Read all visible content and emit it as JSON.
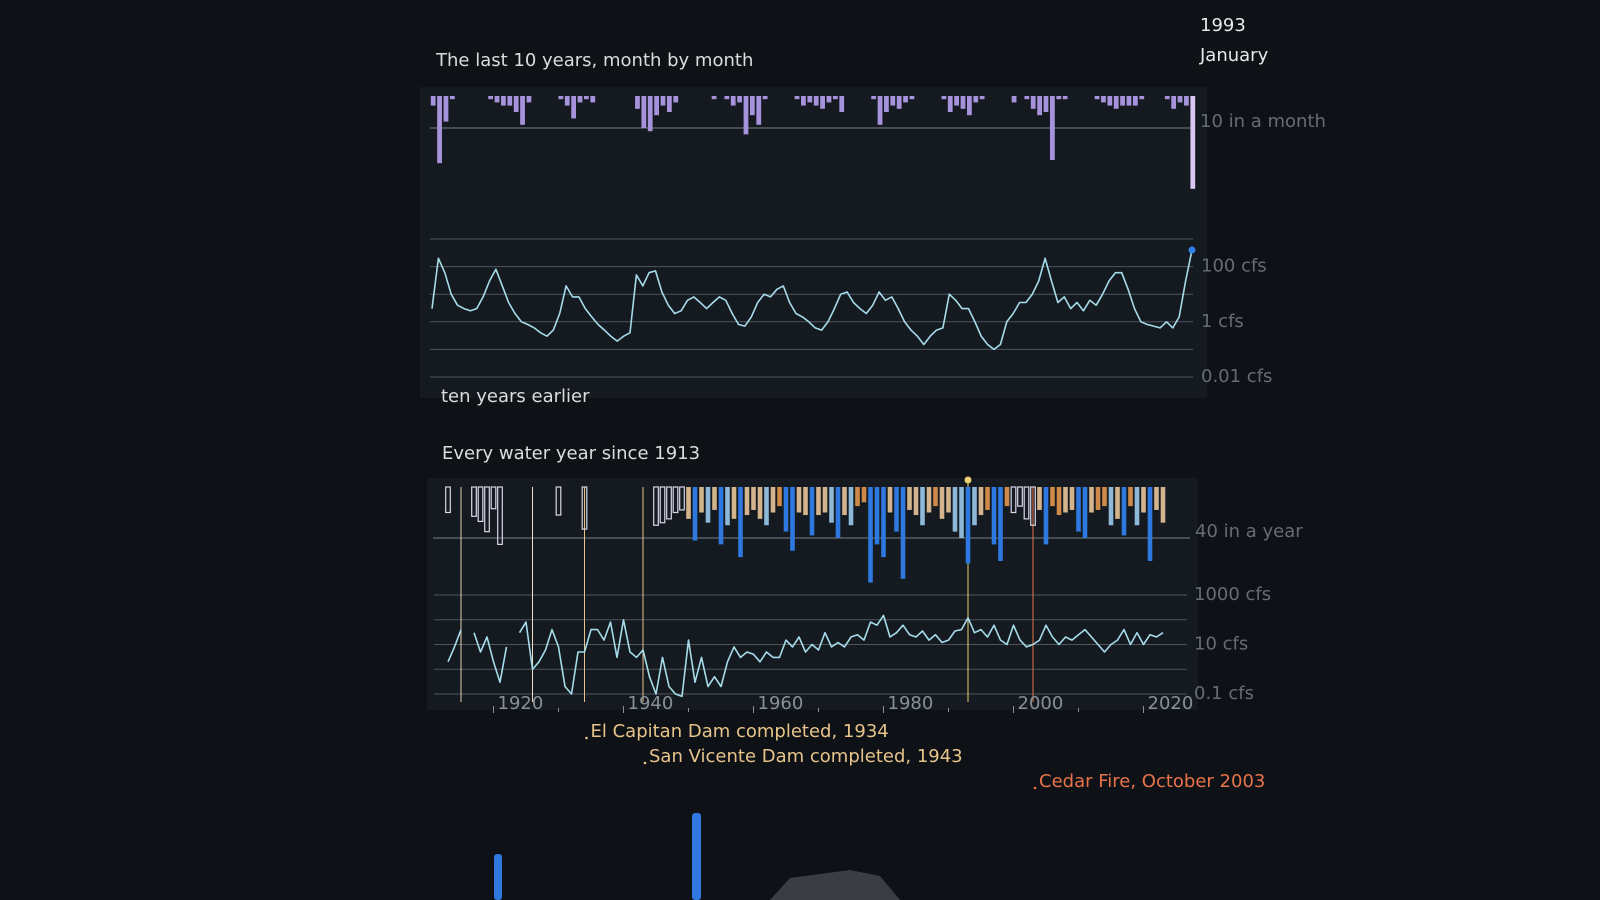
{
  "date": {
    "year": "1993",
    "month": "January"
  },
  "chart_data": [
    {
      "type": "combo",
      "title": "The last 10 years, month by month",
      "annotation": "ten years earlier",
      "bars": {
        "color": "#a793dc",
        "current_color": "#d8c8f2",
        "ylim": [
          0,
          30
        ],
        "ref_line": {
          "value": 10,
          "label": "10 in a month"
        },
        "values": [
          3,
          21,
          8,
          1,
          0,
          0,
          0,
          0,
          0,
          1,
          2,
          3,
          3,
          5,
          9,
          2,
          0,
          0,
          0,
          0,
          1,
          3,
          7,
          2,
          1,
          2,
          0,
          0,
          0,
          0,
          0,
          0,
          4,
          10,
          11,
          6,
          3,
          5,
          2,
          0,
          0,
          0,
          0,
          0,
          1,
          0,
          1,
          3,
          2,
          12,
          6,
          9,
          1,
          0,
          0,
          0,
          0,
          1,
          3,
          2,
          3,
          4,
          2,
          1,
          5,
          0,
          0,
          0,
          0,
          1,
          9,
          5,
          3,
          4,
          2,
          1,
          0,
          0,
          0,
          0,
          1,
          5,
          3,
          4,
          6,
          2,
          1,
          0,
          0,
          0,
          0,
          2,
          0,
          1,
          4,
          6,
          5,
          20,
          1,
          1,
          0,
          0,
          0,
          0,
          1,
          2,
          3,
          4,
          3,
          3,
          3,
          1,
          0,
          0,
          0,
          1,
          4,
          2,
          3,
          29
        ]
      },
      "line": {
        "color": "#a6dcea",
        "current_color": "#2f80e8",
        "log": true,
        "ylim": [
          0.01,
          1000
        ],
        "yticks": [
          {
            "value": 100,
            "label": "100 cfs"
          },
          {
            "value": 1,
            "label": "1 cfs"
          },
          {
            "value": 0.01,
            "label": "0.01 cfs"
          }
        ],
        "grid": [
          1000,
          10,
          0.1
        ],
        "values": [
          3,
          200,
          60,
          10,
          4,
          3,
          2.5,
          3,
          8,
          30,
          80,
          20,
          5,
          2,
          1,
          0.8,
          0.6,
          0.4,
          0.3,
          0.5,
          2,
          20,
          8,
          8,
          3,
          1.5,
          0.8,
          0.5,
          0.3,
          0.2,
          0.3,
          0.4,
          50,
          20,
          60,
          70,
          12,
          4,
          2,
          2.5,
          6,
          8,
          5,
          3,
          5,
          8,
          6,
          2,
          0.8,
          0.7,
          1.5,
          5,
          10,
          8,
          15,
          20,
          5,
          2,
          1.5,
          1,
          0.6,
          0.5,
          1,
          3,
          10,
          12,
          5,
          3,
          2,
          4,
          12,
          6,
          8,
          3,
          1,
          0.5,
          0.3,
          0.15,
          0.3,
          0.5,
          0.6,
          10,
          6,
          3,
          3,
          1,
          0.3,
          0.15,
          0.1,
          0.15,
          1,
          2,
          5,
          5,
          10,
          30,
          200,
          30,
          5,
          8,
          3,
          5,
          2.5,
          6,
          4,
          10,
          30,
          60,
          60,
          15,
          3,
          1,
          0.8,
          0.7,
          0.6,
          1,
          0.6,
          1.5,
          30,
          400
        ]
      }
    },
    {
      "type": "combo",
      "title": "Every water year since 1913",
      "x": [
        1913,
        1914,
        1915,
        1916,
        1917,
        1918,
        1919,
        1920,
        1921,
        1922,
        1923,
        1924,
        1925,
        1926,
        1927,
        1928,
        1929,
        1930,
        1931,
        1932,
        1933,
        1934,
        1935,
        1936,
        1937,
        1938,
        1939,
        1940,
        1941,
        1942,
        1943,
        1944,
        1945,
        1946,
        1947,
        1948,
        1949,
        1950,
        1951,
        1952,
        1953,
        1954,
        1955,
        1956,
        1957,
        1958,
        1959,
        1960,
        1961,
        1962,
        1963,
        1964,
        1965,
        1966,
        1967,
        1968,
        1969,
        1970,
        1971,
        1972,
        1973,
        1974,
        1975,
        1976,
        1977,
        1978,
        1979,
        1980,
        1981,
        1982,
        1983,
        1984,
        1985,
        1986,
        1987,
        1988,
        1989,
        1990,
        1991,
        1992,
        1993,
        1994,
        1995,
        1996,
        1997,
        1998,
        1999,
        2000,
        2001,
        2002,
        2003,
        2004,
        2005,
        2006,
        2007,
        2008,
        2009,
        2010,
        2011,
        2012,
        2013,
        2014,
        2015,
        2016,
        2017,
        2018,
        2019,
        2020,
        2021,
        2022,
        2023
      ],
      "xlim": [
        1910,
        2026
      ],
      "xticks": [
        1920,
        1940,
        1960,
        1980,
        2000,
        2020
      ],
      "xminor": [
        1930,
        1950,
        1970,
        1990,
        2010
      ],
      "bars": {
        "outline_color": "#d8d8e8",
        "ylim": [
          0,
          80
        ],
        "ref_line": {
          "value": 40,
          "label": "40 in a year"
        },
        "values": [
          20,
          null,
          null,
          null,
          23,
          27,
          35,
          17,
          45,
          null,
          null,
          null,
          null,
          null,
          null,
          null,
          null,
          22,
          null,
          null,
          null,
          33,
          null,
          null,
          null,
          null,
          null,
          null,
          null,
          null,
          null,
          null,
          30,
          28,
          25,
          20,
          18,
          25,
          42,
          20,
          28,
          18,
          45,
          30,
          25,
          55,
          22,
          18,
          25,
          30,
          20,
          15,
          35,
          50,
          20,
          22,
          38,
          22,
          20,
          28,
          40,
          22,
          30,
          15,
          12,
          75,
          45,
          55,
          20,
          35,
          72,
          18,
          22,
          30,
          20,
          15,
          25,
          20,
          35,
          40,
          60,
          30,
          22,
          18,
          45,
          58,
          15,
          20,
          15,
          25,
          30,
          18,
          45,
          15,
          22,
          20,
          18,
          35,
          40,
          20,
          18,
          15,
          30,
          25,
          38,
          15,
          30,
          20,
          58,
          18,
          28
        ],
        "colors": [
          null,
          null,
          null,
          null,
          null,
          null,
          null,
          null,
          null,
          null,
          null,
          null,
          null,
          null,
          null,
          null,
          null,
          null,
          null,
          null,
          null,
          null,
          null,
          null,
          null,
          null,
          null,
          null,
          null,
          null,
          null,
          null,
          null,
          null,
          null,
          null,
          null,
          "#d4b48c",
          "#2f78e0",
          "#d4b48c",
          "#8db8d8",
          "#d4b48c",
          "#2f78e0",
          "#8db8d8",
          "#d4b48c",
          "#2f78e0",
          "#d4b48c",
          "#d4b48c",
          "#d4b48c",
          "#8db8d8",
          "#d4b48c",
          "#cf8a4a",
          "#2f78e0",
          "#2f78e0",
          "#d4b48c",
          "#d4b48c",
          "#2f78e0",
          "#d4b48c",
          "#d4b48c",
          "#8db8d8",
          "#2f78e0",
          "#d4b48c",
          "#8db8d8",
          "#cf8a4a",
          "#cf8a4a",
          "#2f78e0",
          "#2f78e0",
          "#2f78e0",
          "#d4b48c",
          "#2f78e0",
          "#2f78e0",
          "#d4b48c",
          "#d4b48c",
          "#8db8d8",
          "#d4b48c",
          "#cf8a4a",
          "#d4b48c",
          "#d4b48c",
          "#8db8d8",
          "#8db8d8",
          "#2f78e0",
          "#8db8d8",
          "#d4b48c",
          "#cf8a4a",
          "#2f78e0",
          "#2f78e0",
          "#cf8a4a",
          null,
          null,
          null,
          null,
          "#d4b48c",
          "#2f78e0",
          "#cf8a4a",
          "#cf8a4a",
          "#d4b48c",
          "#d4b48c",
          "#2f78e0",
          "#2f78e0",
          "#d4b48c",
          "#cf8a4a",
          "#cf8a4a",
          "#8db8d8",
          "#d4b48c",
          "#2f78e0",
          "#cf8a4a",
          "#8db8d8",
          "#d4b48c",
          "#2f78e0",
          "#d4b48c",
          "#d4b48c"
        ]
      },
      "line": {
        "color": "#a6dcea",
        "log": true,
        "ylim": [
          0.1,
          1000
        ],
        "yticks": [
          {
            "value": 1000,
            "label": "1000 cfs"
          },
          {
            "value": 10,
            "label": "10 cfs"
          },
          {
            "value": 0.1,
            "label": "0.1 cfs"
          }
        ],
        "grid": [
          100,
          1
        ],
        "values": [
          2,
          8,
          40,
          null,
          30,
          5,
          20,
          2,
          0.3,
          8,
          null,
          30,
          80,
          1,
          2,
          6,
          40,
          8,
          0.2,
          0.1,
          5,
          5,
          40,
          40,
          15,
          80,
          3,
          100,
          5,
          3,
          6,
          0.5,
          0.1,
          3,
          0.2,
          0.1,
          0.08,
          15,
          0.3,
          3,
          0.2,
          0.5,
          0.2,
          2,
          8,
          3,
          5,
          4,
          2,
          5,
          3,
          3,
          15,
          8,
          20,
          5,
          10,
          6,
          30,
          8,
          12,
          8,
          20,
          25,
          15,
          80,
          60,
          150,
          20,
          30,
          60,
          25,
          20,
          35,
          15,
          25,
          12,
          15,
          35,
          40,
          120,
          30,
          40,
          20,
          60,
          15,
          10,
          60,
          15,
          8,
          10,
          15,
          60,
          20,
          10,
          20,
          15,
          25,
          40,
          20,
          10,
          5,
          10,
          15,
          40,
          10,
          30,
          10,
          25,
          20,
          30
        ]
      },
      "marker_years": [
        {
          "year": 1915,
          "color": "#e6d2b0"
        },
        {
          "year": 1926,
          "color": "#ece2cc"
        }
      ],
      "cursor_color": "#e8d070",
      "events": [
        {
          "year": 1934,
          "label": "El Capitan Dam completed, 1934",
          "color": "#e8c48a"
        },
        {
          "year": 1943,
          "label": "San Vicente Dam completed, 1943",
          "color": "#e8c48a"
        },
        {
          "year": 2003,
          "label": "Cedar Fire, October 2003",
          "color": "#e8734a"
        }
      ]
    }
  ]
}
